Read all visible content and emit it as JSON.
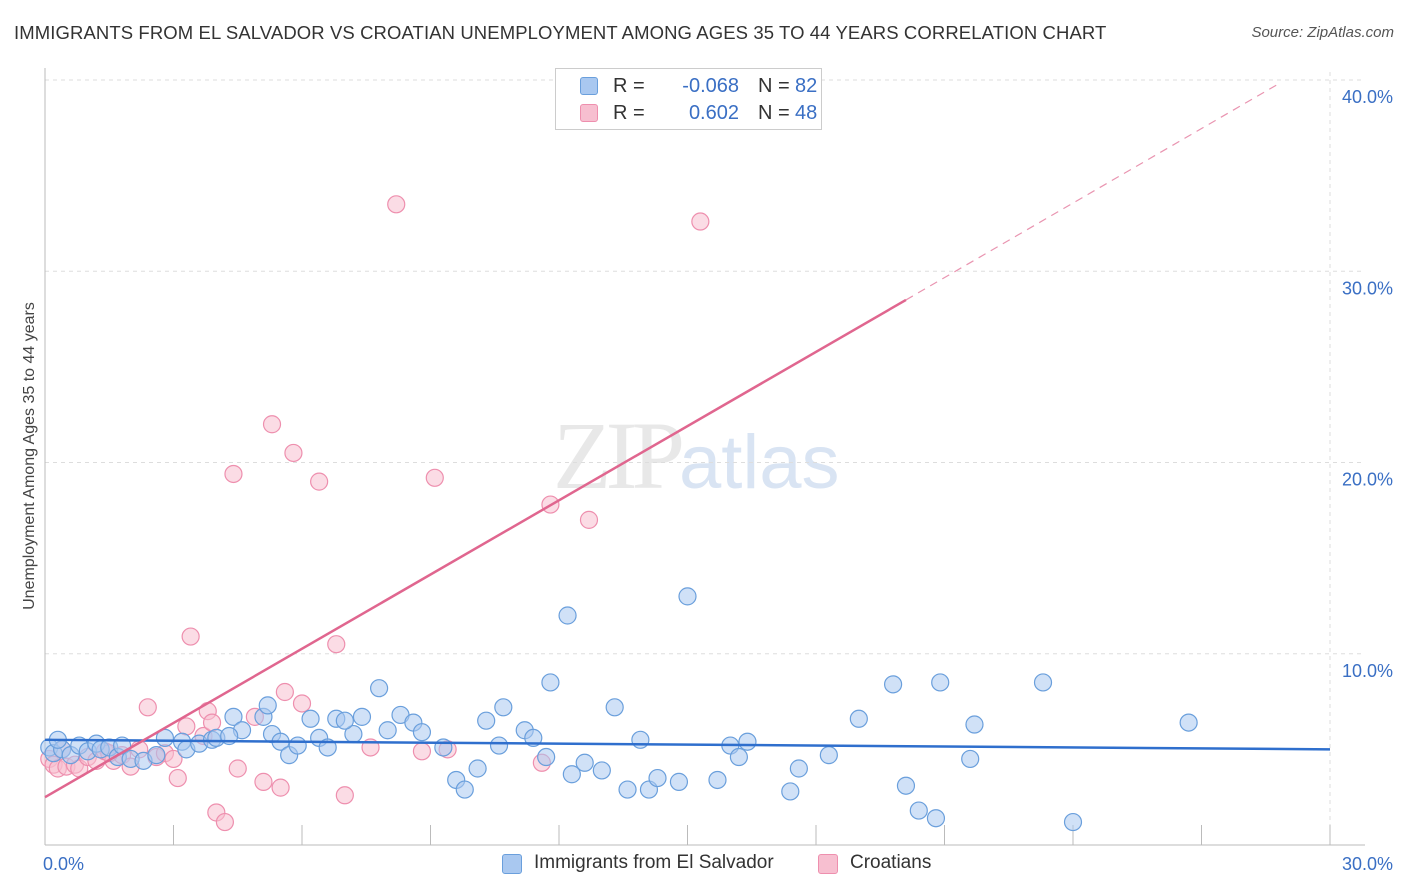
{
  "title": "IMMIGRANTS FROM EL SALVADOR VS CROATIAN UNEMPLOYMENT AMONG AGES 35 TO 44 YEARS CORRELATION CHART",
  "source": "Source: ZipAtlas.com",
  "watermark": {
    "part1": "ZIP",
    "part2": "atlas"
  },
  "legend_top": {
    "rows": [
      {
        "r_label": "R =",
        "r_value": "-0.068",
        "n_label": "N =",
        "n_value": "82"
      },
      {
        "r_label": "R =",
        "r_value": "0.602",
        "n_label": "N =",
        "n_value": "48"
      }
    ]
  },
  "legend_bottom": {
    "items": [
      {
        "label": "Immigrants from El Salvador"
      },
      {
        "label": "Croatians"
      }
    ]
  },
  "colors": {
    "blue_fill": "#a9c8f0",
    "blue_stroke": "#6a9fdc",
    "blue_line": "#2f6fcd",
    "pink_fill": "#f7bfd0",
    "pink_stroke": "#ee8fae",
    "pink_line": "#e0668f",
    "tick_text": "#3a6fc4",
    "grid": "#dddddd"
  },
  "chart_data": {
    "type": "scatter",
    "title": "IMMIGRANTS FROM EL SALVADOR VS CROATIAN UNEMPLOYMENT AMONG AGES 35 TO 44 YEARS CORRELATION CHART",
    "xlabel": "",
    "ylabel": "Unemployment Among Ages 35 to 44 years",
    "xlim": [
      0,
      30
    ],
    "ylim": [
      0,
      40
    ],
    "x_tick_labels": [
      {
        "value": 0,
        "label": "0.0%"
      },
      {
        "value": 30,
        "label": "30.0%"
      }
    ],
    "y_tick_labels": [
      {
        "value": 10,
        "label": "10.0%"
      },
      {
        "value": 20,
        "label": "20.0%"
      },
      {
        "value": 30,
        "label": "30.0%"
      },
      {
        "value": 40,
        "label": "40.0%"
      }
    ],
    "x_minor_ticks": [
      3,
      6,
      9,
      12,
      15,
      18,
      21,
      24,
      27,
      30
    ],
    "grid": true,
    "series": [
      {
        "name": "Immigrants from El Salvador",
        "color": "blue",
        "r": -0.068,
        "n": 82,
        "trend": {
          "x0": 0,
          "y0": 5.5,
          "x1": 30,
          "y1": 5.0
        },
        "points": [
          [
            0.1,
            5.1
          ],
          [
            0.2,
            4.8
          ],
          [
            0.4,
            5.0
          ],
          [
            0.6,
            4.7
          ],
          [
            0.8,
            5.2
          ],
          [
            1.0,
            4.9
          ],
          [
            1.2,
            5.3
          ],
          [
            1.3,
            5.0
          ],
          [
            1.5,
            5.1
          ],
          [
            1.7,
            4.6
          ],
          [
            1.8,
            5.2
          ],
          [
            2.0,
            4.5
          ],
          [
            2.3,
            4.4
          ],
          [
            2.8,
            5.6
          ],
          [
            3.2,
            5.4
          ],
          [
            3.3,
            5.0
          ],
          [
            3.6,
            5.3
          ],
          [
            3.9,
            5.5
          ],
          [
            4.0,
            5.6
          ],
          [
            4.4,
            6.7
          ],
          [
            4.6,
            6.0
          ],
          [
            5.1,
            6.7
          ],
          [
            5.2,
            7.3
          ],
          [
            5.3,
            5.8
          ],
          [
            5.5,
            5.4
          ],
          [
            5.7,
            4.7
          ],
          [
            5.9,
            5.2
          ],
          [
            6.2,
            6.6
          ],
          [
            6.4,
            5.6
          ],
          [
            6.6,
            5.1
          ],
          [
            6.8,
            6.6
          ],
          [
            7.2,
            5.8
          ],
          [
            7.4,
            6.7
          ],
          [
            7.8,
            8.2
          ],
          [
            8.0,
            6.0
          ],
          [
            8.3,
            6.8
          ],
          [
            8.6,
            6.4
          ],
          [
            8.8,
            5.9
          ],
          [
            9.3,
            5.1
          ],
          [
            9.6,
            3.4
          ],
          [
            9.8,
            2.9
          ],
          [
            10.1,
            4.0
          ],
          [
            10.3,
            6.5
          ],
          [
            10.6,
            5.2
          ],
          [
            10.7,
            7.2
          ],
          [
            11.2,
            6.0
          ],
          [
            11.4,
            5.6
          ],
          [
            11.7,
            4.6
          ],
          [
            11.8,
            8.5
          ],
          [
            12.2,
            12.0
          ],
          [
            12.3,
            3.7
          ],
          [
            12.6,
            4.3
          ],
          [
            13.0,
            3.9
          ],
          [
            13.3,
            7.2
          ],
          [
            13.6,
            2.9
          ],
          [
            13.9,
            5.5
          ],
          [
            14.1,
            2.9
          ],
          [
            14.3,
            3.5
          ],
          [
            14.8,
            3.3
          ],
          [
            15.0,
            13.0
          ],
          [
            15.7,
            3.4
          ],
          [
            16.0,
            5.2
          ],
          [
            16.2,
            4.6
          ],
          [
            16.4,
            5.4
          ],
          [
            17.4,
            2.8
          ],
          [
            17.6,
            4.0
          ],
          [
            18.3,
            4.7
          ],
          [
            19.0,
            6.6
          ],
          [
            19.8,
            8.4
          ],
          [
            20.1,
            3.1
          ],
          [
            20.4,
            1.8
          ],
          [
            20.8,
            1.4
          ],
          [
            20.9,
            8.5
          ],
          [
            21.6,
            4.5
          ],
          [
            21.7,
            6.3
          ],
          [
            23.3,
            8.5
          ],
          [
            24.0,
            1.2
          ],
          [
            26.7,
            6.4
          ],
          [
            0.3,
            5.5
          ],
          [
            2.6,
            4.7
          ],
          [
            4.3,
            5.7
          ],
          [
            7.0,
            6.5
          ]
        ]
      },
      {
        "name": "Croatians",
        "color": "pink",
        "r": 0.602,
        "n": 48,
        "trend": {
          "x0": 0,
          "y0": 2.5,
          "x1": 20.1,
          "y1": 28.5
        },
        "trend_dashed": {
          "x0": 20.1,
          "y0": 28.5,
          "x1": 28.8,
          "y1": 39.8
        },
        "points": [
          [
            0.1,
            4.5
          ],
          [
            0.2,
            4.2
          ],
          [
            0.3,
            4.0
          ],
          [
            0.5,
            4.1
          ],
          [
            0.7,
            4.2
          ],
          [
            0.8,
            4.0
          ],
          [
            1.0,
            4.6
          ],
          [
            1.2,
            4.4
          ],
          [
            1.4,
            4.9
          ],
          [
            1.6,
            4.4
          ],
          [
            1.8,
            4.7
          ],
          [
            2.0,
            4.1
          ],
          [
            2.4,
            7.2
          ],
          [
            2.6,
            4.6
          ],
          [
            2.8,
            4.8
          ],
          [
            3.0,
            4.5
          ],
          [
            3.1,
            3.5
          ],
          [
            3.3,
            6.2
          ],
          [
            3.4,
            10.9
          ],
          [
            3.7,
            5.7
          ],
          [
            3.8,
            7.0
          ],
          [
            3.9,
            6.4
          ],
          [
            4.0,
            1.7
          ],
          [
            4.2,
            1.2
          ],
          [
            4.4,
            19.4
          ],
          [
            4.5,
            4.0
          ],
          [
            4.9,
            6.7
          ],
          [
            5.1,
            3.3
          ],
          [
            5.3,
            22.0
          ],
          [
            5.5,
            3.0
          ],
          [
            5.6,
            8.0
          ],
          [
            5.8,
            20.5
          ],
          [
            6.0,
            7.4
          ],
          [
            6.4,
            19.0
          ],
          [
            6.8,
            10.5
          ],
          [
            7.0,
            2.6
          ],
          [
            7.6,
            5.1
          ],
          [
            8.2,
            33.5
          ],
          [
            8.8,
            4.9
          ],
          [
            9.1,
            19.2
          ],
          [
            9.4,
            5.0
          ],
          [
            11.6,
            4.3
          ],
          [
            11.8,
            17.8
          ],
          [
            12.7,
            17.0
          ],
          [
            15.3,
            32.6
          ],
          [
            0.4,
            5.0
          ],
          [
            1.5,
            4.8
          ],
          [
            2.2,
            5.0
          ]
        ]
      }
    ]
  }
}
